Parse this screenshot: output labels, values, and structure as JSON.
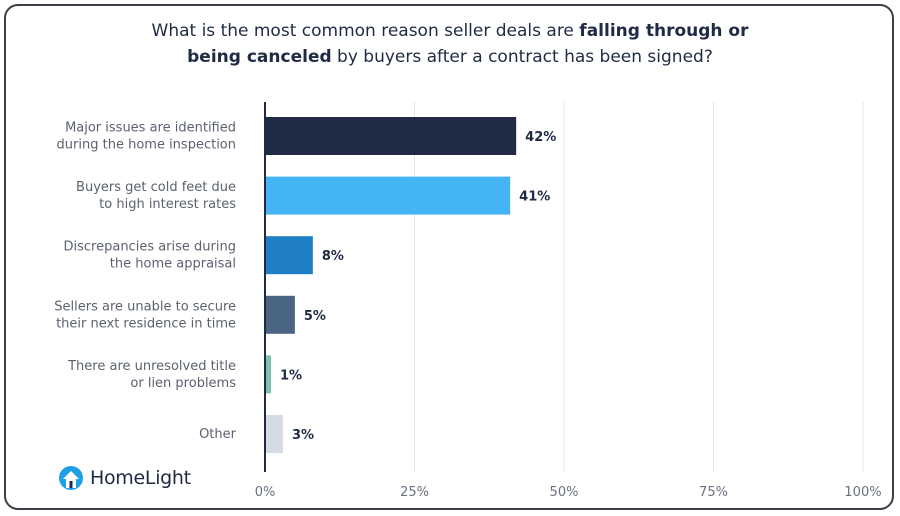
{
  "header": {
    "title_part1": "What is the most common reason seller deals are ",
    "title_bold1": "falling through or",
    "title_bold2": "being canceled",
    "title_part2": " by buyers after a contract has been signed?"
  },
  "brand": {
    "name": "HomeLight",
    "icon": "homelight-house-logo-icon",
    "color": "#1ea0e6"
  },
  "chart_data": {
    "type": "bar",
    "orientation": "horizontal",
    "categories": [
      [
        "Major issues are identified",
        "during the home inspection"
      ],
      [
        "Buyers get cold feet due",
        "to high interest rates"
      ],
      [
        "Discrepancies arise during",
        "the home appraisal"
      ],
      [
        "Sellers are unable to secure",
        "their next residence in time"
      ],
      [
        "There are unresolved title",
        "or lien problems"
      ],
      [
        "Other"
      ]
    ],
    "values": [
      42,
      41,
      8,
      5,
      1,
      3
    ],
    "value_labels": [
      "42%",
      "41%",
      "8%",
      "5%",
      "1%",
      "3%"
    ],
    "colors": [
      "#1f2a44",
      "#45b4f5",
      "#1f7fc4",
      "#4a6584",
      "#7fbfae",
      "#d5dbe2"
    ],
    "xlim": [
      0,
      100
    ],
    "xticks": [
      0,
      25,
      50,
      75,
      100
    ],
    "xtick_labels": [
      "0%",
      "25%",
      "50%",
      "75%",
      "100%"
    ],
    "grid": true
  }
}
